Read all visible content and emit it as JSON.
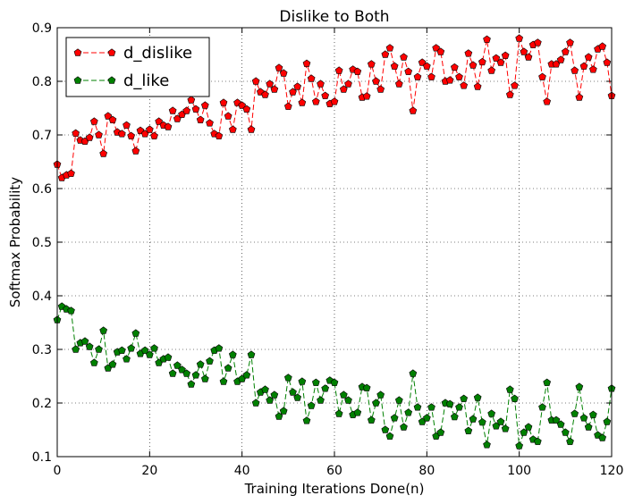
{
  "chart_data": {
    "type": "line",
    "title": "Dislike to Both",
    "xlabel": "Training Iterations Done(n)",
    "ylabel": "Softmax Probability",
    "xlim": [
      0,
      120
    ],
    "ylim": [
      0.1,
      0.9
    ],
    "xticks": [
      0,
      20,
      40,
      60,
      80,
      100,
      120
    ],
    "yticks": [
      0.1,
      0.2,
      0.3,
      0.4,
      0.5,
      0.6,
      0.7,
      0.8,
      0.9
    ],
    "xtick_labels": [
      "0",
      "20",
      "40",
      "60",
      "80",
      "100",
      "120"
    ],
    "ytick_labels": [
      "0.1",
      "0.2",
      "0.3",
      "0.4",
      "0.5",
      "0.6",
      "0.7",
      "0.8",
      "0.9"
    ],
    "grid": true,
    "legend_position": "top-left",
    "series": [
      {
        "name": "d_dislike",
        "color": "#ff0000",
        "marker": "pentagon",
        "linestyle": "dashed",
        "values": [
          0.645,
          0.62,
          0.625,
          0.628,
          0.703,
          0.69,
          0.688,
          0.695,
          0.725,
          0.7,
          0.665,
          0.735,
          0.728,
          0.705,
          0.702,
          0.718,
          0.698,
          0.67,
          0.708,
          0.702,
          0.71,
          0.698,
          0.725,
          0.718,
          0.715,
          0.745,
          0.73,
          0.738,
          0.745,
          0.765,
          0.748,
          0.728,
          0.755,
          0.722,
          0.702,
          0.698,
          0.76,
          0.735,
          0.71,
          0.76,
          0.755,
          0.748,
          0.71,
          0.8,
          0.78,
          0.775,
          0.795,
          0.785,
          0.825,
          0.815,
          0.753,
          0.78,
          0.79,
          0.76,
          0.833,
          0.805,
          0.762,
          0.795,
          0.773,
          0.758,
          0.762,
          0.82,
          0.785,
          0.795,
          0.822,
          0.818,
          0.77,
          0.772,
          0.832,
          0.8,
          0.785,
          0.85,
          0.862,
          0.828,
          0.795,
          0.845,
          0.818,
          0.745,
          0.808,
          0.835,
          0.828,
          0.808,
          0.862,
          0.855,
          0.8,
          0.802,
          0.826,
          0.808,
          0.792,
          0.852,
          0.83,
          0.79,
          0.836,
          0.878,
          0.82,
          0.843,
          0.835,
          0.848,
          0.775,
          0.792,
          0.88,
          0.855,
          0.845,
          0.868,
          0.872,
          0.808,
          0.762,
          0.832,
          0.832,
          0.84,
          0.855,
          0.872,
          0.82,
          0.77,
          0.828,
          0.845,
          0.822,
          0.86,
          0.865,
          0.835,
          0.773
        ]
      },
      {
        "name": "d_like",
        "color": "#008000",
        "marker": "pentagon",
        "linestyle": "dashed",
        "values": [
          0.355,
          0.38,
          0.375,
          0.372,
          0.3,
          0.312,
          0.315,
          0.305,
          0.275,
          0.3,
          0.335,
          0.265,
          0.272,
          0.295,
          0.298,
          0.282,
          0.302,
          0.33,
          0.292,
          0.298,
          0.29,
          0.302,
          0.275,
          0.282,
          0.285,
          0.255,
          0.27,
          0.262,
          0.255,
          0.235,
          0.252,
          0.272,
          0.245,
          0.278,
          0.298,
          0.302,
          0.24,
          0.265,
          0.29,
          0.24,
          0.245,
          0.252,
          0.29,
          0.2,
          0.22,
          0.225,
          0.205,
          0.215,
          0.175,
          0.185,
          0.247,
          0.22,
          0.21,
          0.24,
          0.167,
          0.195,
          0.238,
          0.205,
          0.227,
          0.242,
          0.238,
          0.18,
          0.215,
          0.205,
          0.178,
          0.182,
          0.23,
          0.228,
          0.168,
          0.2,
          0.215,
          0.15,
          0.138,
          0.172,
          0.205,
          0.155,
          0.182,
          0.255,
          0.192,
          0.165,
          0.172,
          0.192,
          0.138,
          0.145,
          0.2,
          0.198,
          0.174,
          0.192,
          0.208,
          0.148,
          0.17,
          0.21,
          0.164,
          0.122,
          0.18,
          0.157,
          0.165,
          0.152,
          0.225,
          0.208,
          0.12,
          0.145,
          0.155,
          0.132,
          0.128,
          0.192,
          0.238,
          0.168,
          0.168,
          0.16,
          0.145,
          0.128,
          0.18,
          0.23,
          0.172,
          0.155,
          0.178,
          0.14,
          0.135,
          0.165,
          0.227
        ]
      }
    ]
  }
}
